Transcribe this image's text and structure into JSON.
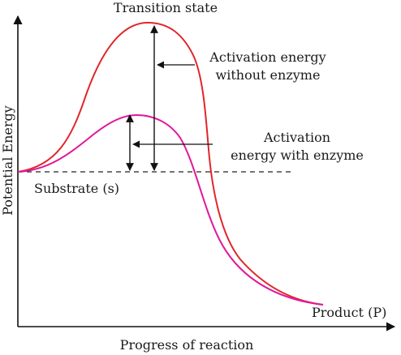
{
  "diagram": {
    "title": "Transition state",
    "labels": {
      "activation_without": [
        "Activation energy",
        "without enzyme"
      ],
      "activation_with": [
        "Activation",
        "energy with enzyme"
      ],
      "substrate": "Substrate (s)",
      "product": "Product (P)"
    },
    "axes": {
      "x_label": "Progress of reaction",
      "y_label": "Potential Energy"
    },
    "colors": {
      "without_enzyme_curve": "#e0262b",
      "with_enzyme_curve": "#e0189a",
      "axis": "#111111",
      "arrows": "#111111"
    }
  }
}
